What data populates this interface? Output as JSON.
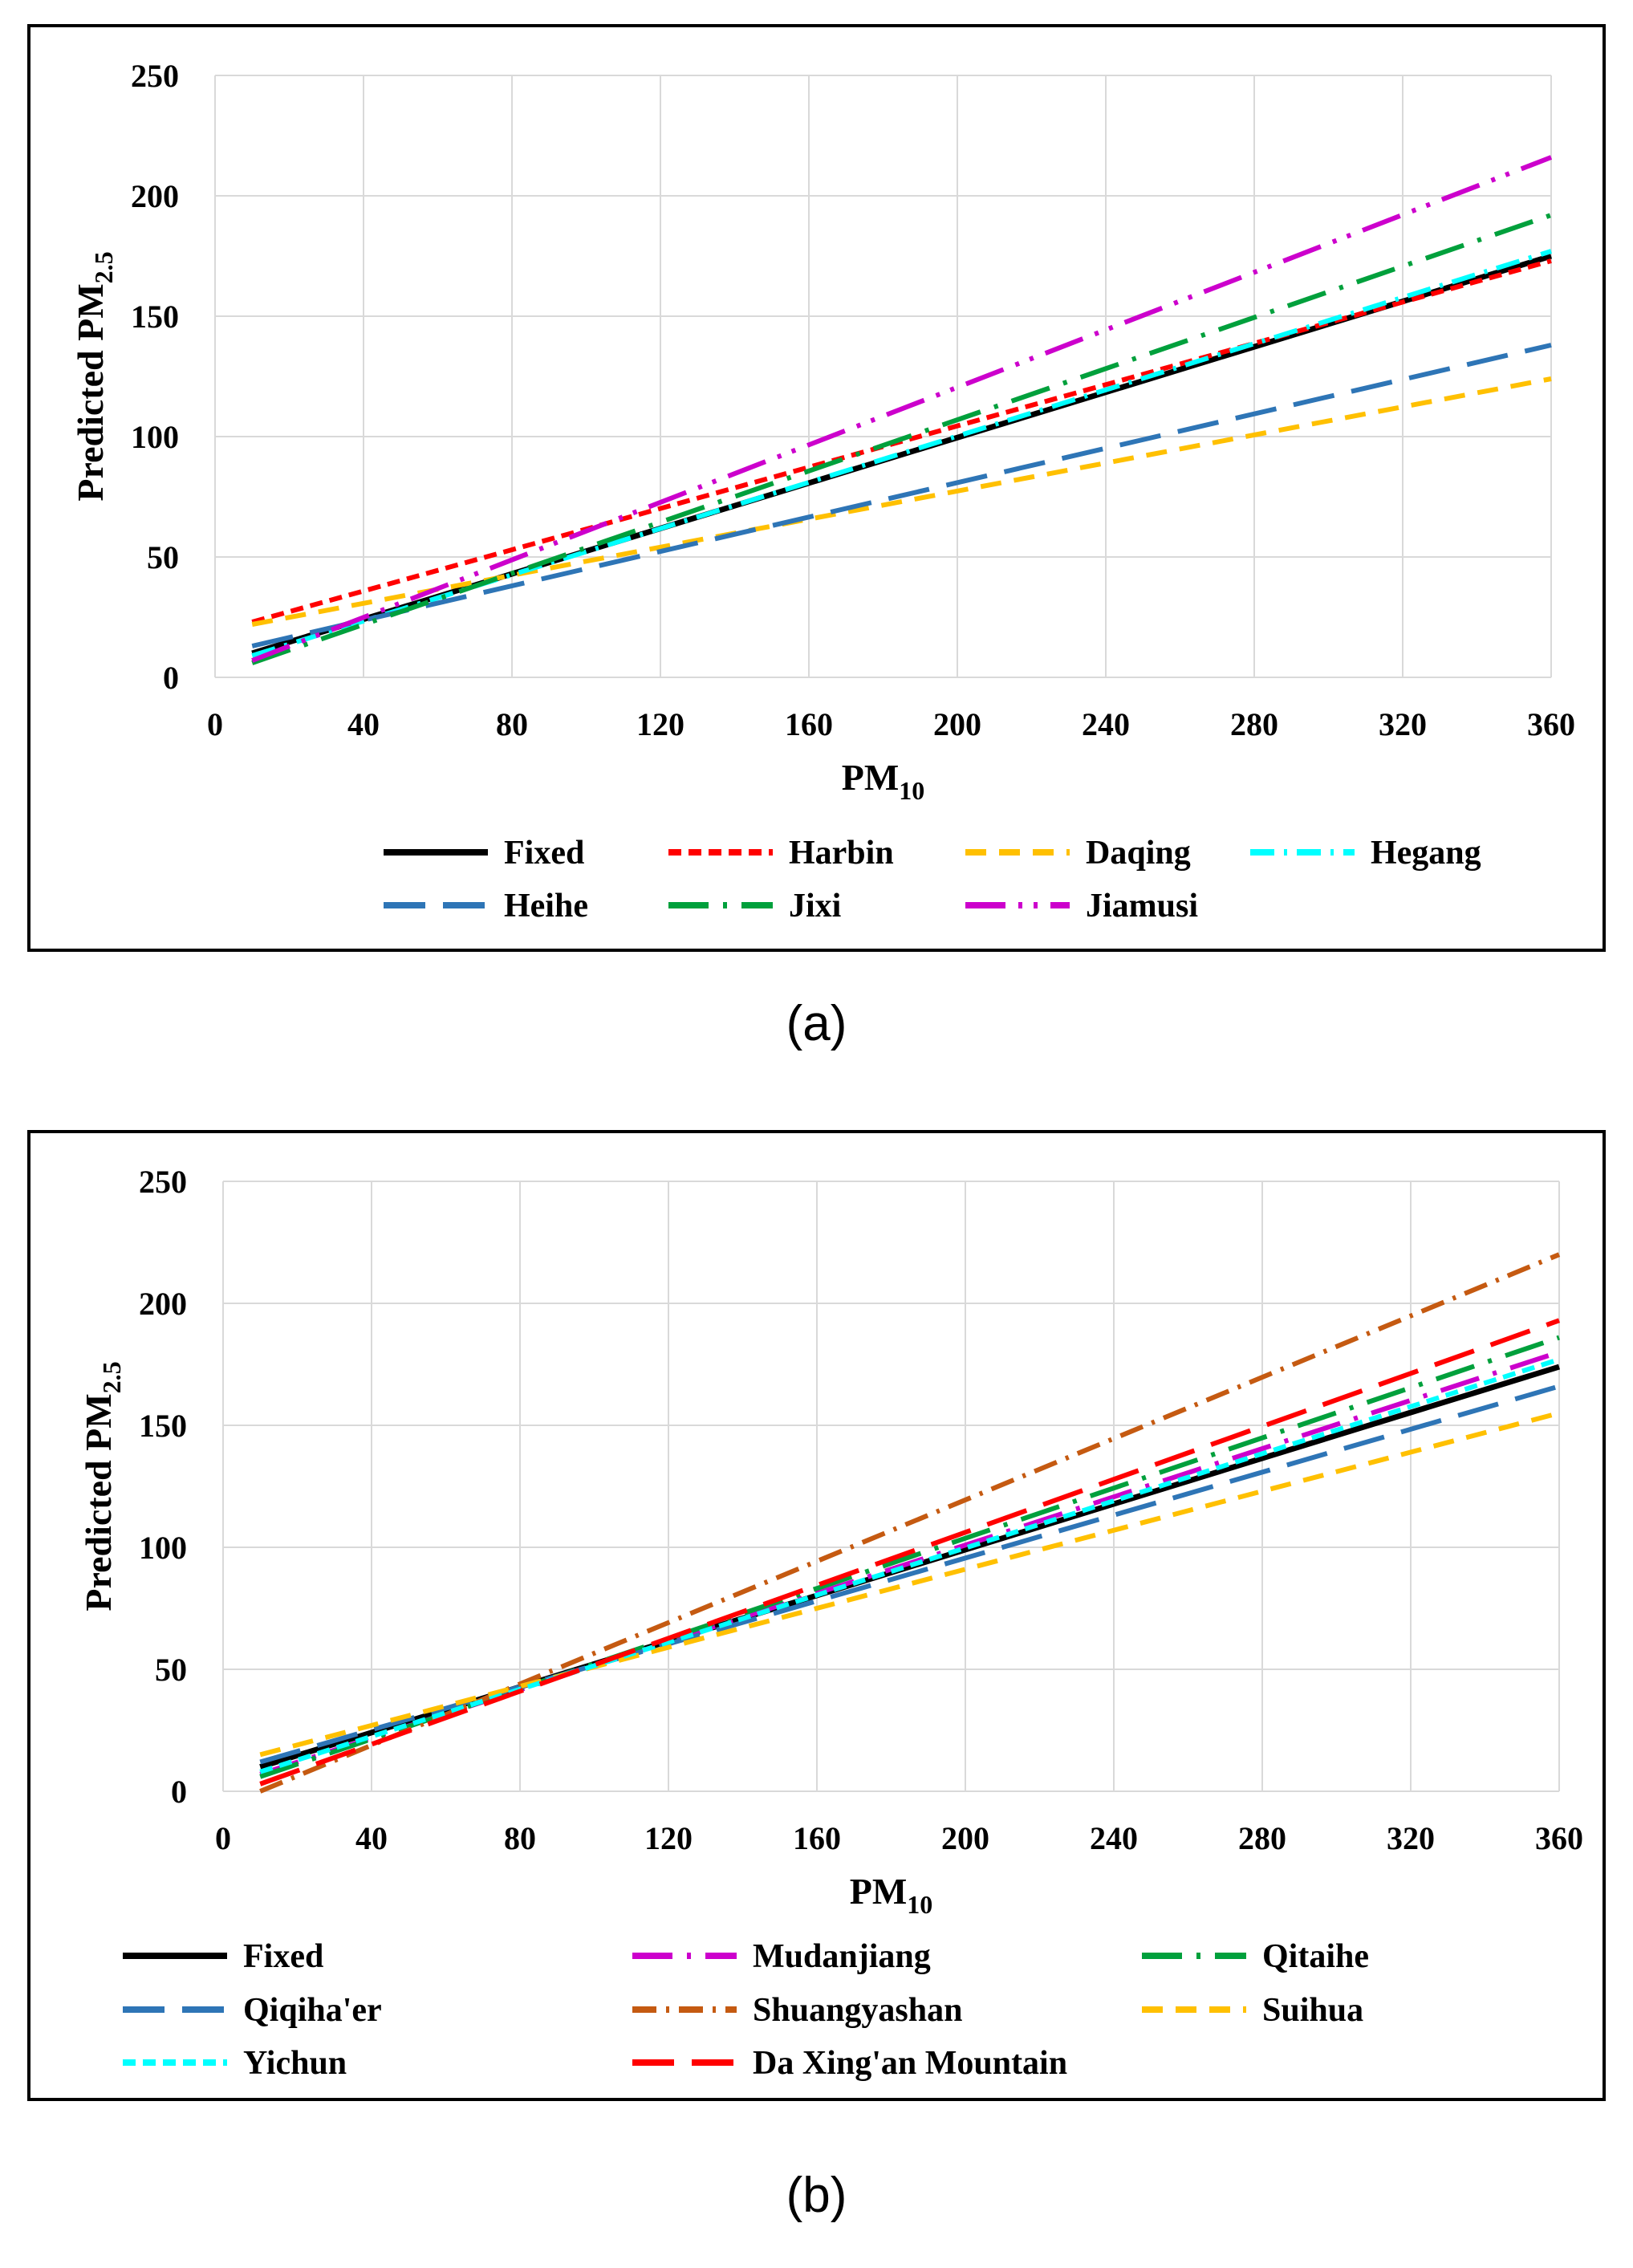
{
  "captions": {
    "a": "(a)",
    "b": "(b)"
  },
  "chart_data": [
    {
      "type": "line",
      "panel": "a",
      "xlabel": {
        "main": "PM",
        "sub": "10"
      },
      "ylabel": {
        "main": "Predicted PM",
        "sub": "2.5"
      },
      "xlim": [
        0,
        360
      ],
      "ylim": [
        0,
        250
      ],
      "xticks": [
        0,
        40,
        80,
        120,
        160,
        200,
        240,
        280,
        320,
        360
      ],
      "yticks": [
        0,
        50,
        100,
        150,
        200,
        250
      ],
      "grid": true,
      "legend_position": "bottom",
      "series": [
        {
          "name": "Fixed",
          "color": "#000000",
          "dash": "solid",
          "x": [
            10,
            360
          ],
          "y": [
            10,
            175
          ]
        },
        {
          "name": "Harbin",
          "color": "#ff0000",
          "dash": "short",
          "x": [
            10,
            360
          ],
          "y": [
            23,
            173
          ]
        },
        {
          "name": "Daqing",
          "color": "#ffc000",
          "dash": "dash",
          "x": [
            10,
            360
          ],
          "y": [
            22,
            124
          ]
        },
        {
          "name": "Hegang",
          "color": "#00ffff",
          "dash": "dashdot",
          "x": [
            10,
            360
          ],
          "y": [
            9,
            177
          ]
        },
        {
          "name": "Heihe",
          "color": "#2e75b6",
          "dash": "long",
          "x": [
            10,
            360
          ],
          "y": [
            13,
            138
          ]
        },
        {
          "name": "Jixi",
          "color": "#00a03c",
          "dash": "longdot",
          "x": [
            10,
            360
          ],
          "y": [
            6,
            192
          ]
        },
        {
          "name": "Jiamusi",
          "color": "#cc00cc",
          "dash": "longdotdot",
          "x": [
            10,
            360
          ],
          "y": [
            7,
            216
          ]
        }
      ]
    },
    {
      "type": "line",
      "panel": "b",
      "xlabel": {
        "main": "PM",
        "sub": "10"
      },
      "ylabel": {
        "main": "Predicted PM",
        "sub": "2.5"
      },
      "xlim": [
        0,
        360
      ],
      "ylim": [
        0,
        250
      ],
      "xticks": [
        0,
        40,
        80,
        120,
        160,
        200,
        240,
        280,
        320,
        360
      ],
      "yticks": [
        0,
        50,
        100,
        150,
        200,
        250
      ],
      "grid": true,
      "legend_position": "bottom",
      "series": [
        {
          "name": "Fixed",
          "color": "#000000",
          "dash": "solid",
          "x": [
            10,
            360
          ],
          "y": [
            10,
            174
          ]
        },
        {
          "name": "Mudanjiang",
          "color": "#cc00cc",
          "dash": "longdot",
          "x": [
            10,
            360
          ],
          "y": [
            7,
            180
          ]
        },
        {
          "name": "Qitaihe",
          "color": "#00a03c",
          "dash": "longdot",
          "x": [
            10,
            360
          ],
          "y": [
            6,
            186
          ]
        },
        {
          "name": "Qiqiha'er",
          "color": "#2e75b6",
          "dash": "long",
          "x": [
            10,
            360
          ],
          "y": [
            12,
            166
          ]
        },
        {
          "name": "Shuangyashan",
          "color": "#c55a11",
          "dash": "dashdot",
          "x": [
            10,
            360
          ],
          "y": [
            -3,
            220
          ]
        },
        {
          "name": "Suihua",
          "color": "#ffc000",
          "dash": "dash",
          "x": [
            10,
            360
          ],
          "y": [
            15,
            155
          ]
        },
        {
          "name": "Yichun",
          "color": "#00ffff",
          "dash": "short",
          "x": [
            10,
            360
          ],
          "y": [
            8,
            177
          ]
        },
        {
          "name": "Da Xing'an Mountain",
          "color": "#ff0000",
          "dash": "long",
          "x": [
            10,
            360
          ],
          "y": [
            3,
            193
          ]
        }
      ]
    }
  ]
}
